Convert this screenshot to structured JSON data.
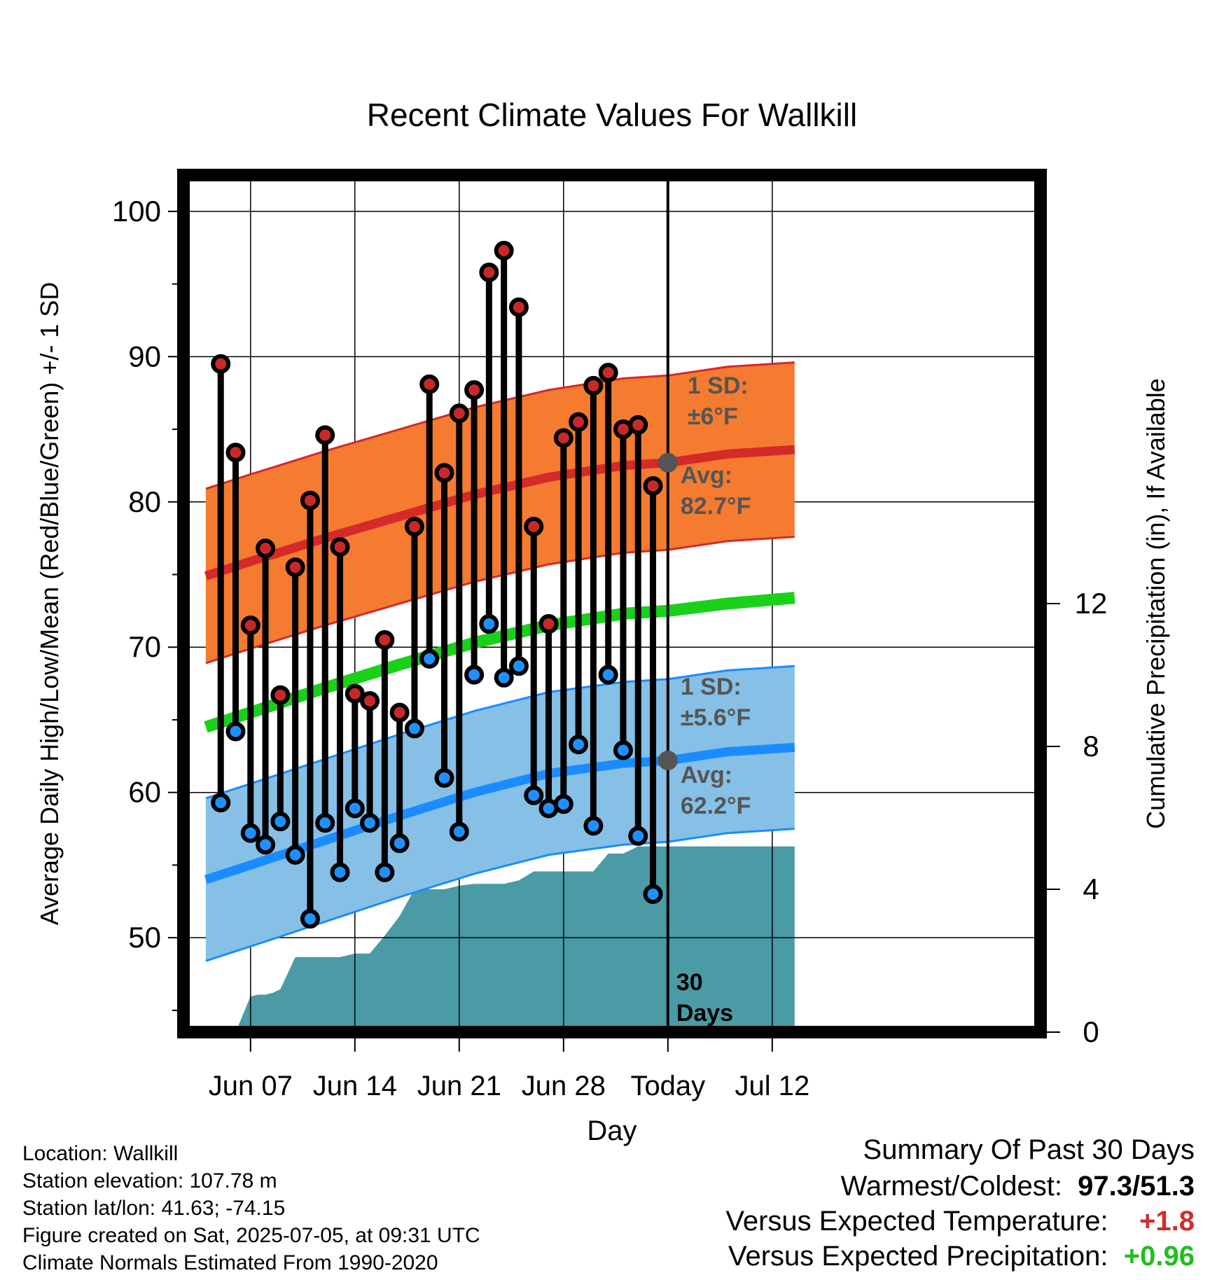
{
  "chart_data": {
    "type": "line",
    "title": "Recent Climate Values For Wallkill",
    "xlabel": "Day",
    "ylabel": "Average Daily High/Low/Mean (Red/Blue/Green) +/- 1 SD",
    "y2label": "Cumulative Precipitation (in), If Available",
    "xlim": [
      -4.5,
      53
    ],
    "ylim": [
      43.5,
      102.5
    ],
    "y2lim": [
      0,
      24
    ],
    "yticks": [
      50,
      60,
      70,
      80,
      90,
      100
    ],
    "yticklabels": [
      "50",
      "60",
      "70",
      "80",
      "90",
      "100"
    ],
    "y2ticks": [
      0,
      4,
      8,
      12
    ],
    "y2ticklabels": [
      "0",
      "4",
      "8",
      "12"
    ],
    "xticks": [
      0,
      7,
      14,
      21,
      28,
      35
    ],
    "xticklabels": [
      "Jun 07",
      "Jun 14",
      "Jun 21",
      "Jun 28",
      "Today",
      "Jul 12"
    ],
    "today_x": 28,
    "today_label": "30 Days",
    "grid": true,
    "normals": {
      "x": [
        -3,
        0,
        5,
        10,
        15,
        20,
        25,
        28,
        32,
        36.5
      ],
      "high_avg": [
        74.9,
        75.9,
        77.5,
        79.0,
        80.5,
        81.7,
        82.5,
        82.7,
        83.3,
        83.6
      ],
      "low_avg": [
        54.0,
        55.0,
        56.7,
        58.4,
        60.0,
        61.3,
        62.0,
        62.2,
        62.8,
        63.1
      ],
      "mean_avg": [
        64.5,
        65.5,
        67.2,
        68.8,
        70.3,
        71.5,
        72.3,
        72.5,
        73.0,
        73.4
      ],
      "high_sd": 6,
      "low_sd": 5.6
    },
    "labels": {
      "high_sd": "1 SD: ±6°F",
      "high_avg": "Avg: 82.7°F",
      "low_sd": "1 SD: ±5.6°F",
      "low_avg": "Avg: 62.2°F"
    },
    "daily": {
      "x": [
        -2,
        -1,
        0,
        1,
        2,
        3,
        4,
        5,
        6,
        7,
        8,
        9,
        10,
        11,
        12,
        13,
        14,
        15,
        16,
        17,
        18,
        19,
        20,
        21,
        22,
        23,
        24,
        25,
        26,
        27
      ],
      "high": [
        89.5,
        83.4,
        71.5,
        76.8,
        66.7,
        75.5,
        80.1,
        84.6,
        76.9,
        66.8,
        66.3,
        70.5,
        65.5,
        78.3,
        88.1,
        82.0,
        86.1,
        87.7,
        95.8,
        97.3,
        93.4,
        78.3,
        71.6,
        84.4,
        85.5,
        88.0,
        88.9,
        85.0,
        85.3,
        81.1
      ],
      "low": [
        59.3,
        64.2,
        57.2,
        56.4,
        58.0,
        55.7,
        51.3,
        57.9,
        54.5,
        58.9,
        57.9,
        54.5,
        56.5,
        64.4,
        69.2,
        61.0,
        57.3,
        68.1,
        71.6,
        67.9,
        68.7,
        59.8,
        58.9,
        59.2,
        63.3,
        57.7,
        68.1,
        62.9,
        57.0,
        53.0
      ]
    },
    "precip": {
      "x": [
        -2,
        -1,
        0,
        0.5,
        1,
        1.5,
        2,
        3,
        4,
        5,
        6,
        7,
        8,
        9,
        10,
        11,
        12,
        13,
        14,
        15,
        16,
        17,
        18,
        19,
        20,
        21,
        22,
        23,
        24,
        25,
        26,
        27,
        28,
        36.5
      ],
      "values": [
        0,
        0,
        1.0,
        1.05,
        1.05,
        1.1,
        1.2,
        2.1,
        2.1,
        2.1,
        2.1,
        2.2,
        2.2,
        2.7,
        3.25,
        4.0,
        4.0,
        4.0,
        4.1,
        4.15,
        4.15,
        4.15,
        4.25,
        4.5,
        4.5,
        4.5,
        4.5,
        4.5,
        5.0,
        5.0,
        5.2,
        5.2,
        5.2,
        5.2
      ]
    }
  },
  "info": {
    "location": "Location: Wallkill",
    "elevation": "Station elevation: 107.78 m",
    "latlon": "Station lat/lon: 41.63; -74.15",
    "created": "Figure created on Sat, 2025-07-05, at 09:31 UTC",
    "normals_period": "Climate Normals Estimated From 1990-2020"
  },
  "summary": {
    "title": "Summary Of Past 30 Days",
    "extremes_label": "Warmest/Coldest:",
    "extremes_value": "97.3/51.3",
    "temp_label": "Versus Expected Temperature:",
    "temp_value": "+1.8",
    "precip_label": "Versus Expected Precipitation:",
    "precip_value": "+0.96"
  },
  "colors": {
    "high_band": "#f47b30",
    "high_line": "#d42a2a",
    "low_band": "#86c0e6",
    "low_line": "#1a8cff",
    "mean_line": "#19d119",
    "precip_fill": "#4a9ba6",
    "high_marker": "#c82828",
    "low_marker": "#1e90ff",
    "annot_text": "#555555"
  }
}
